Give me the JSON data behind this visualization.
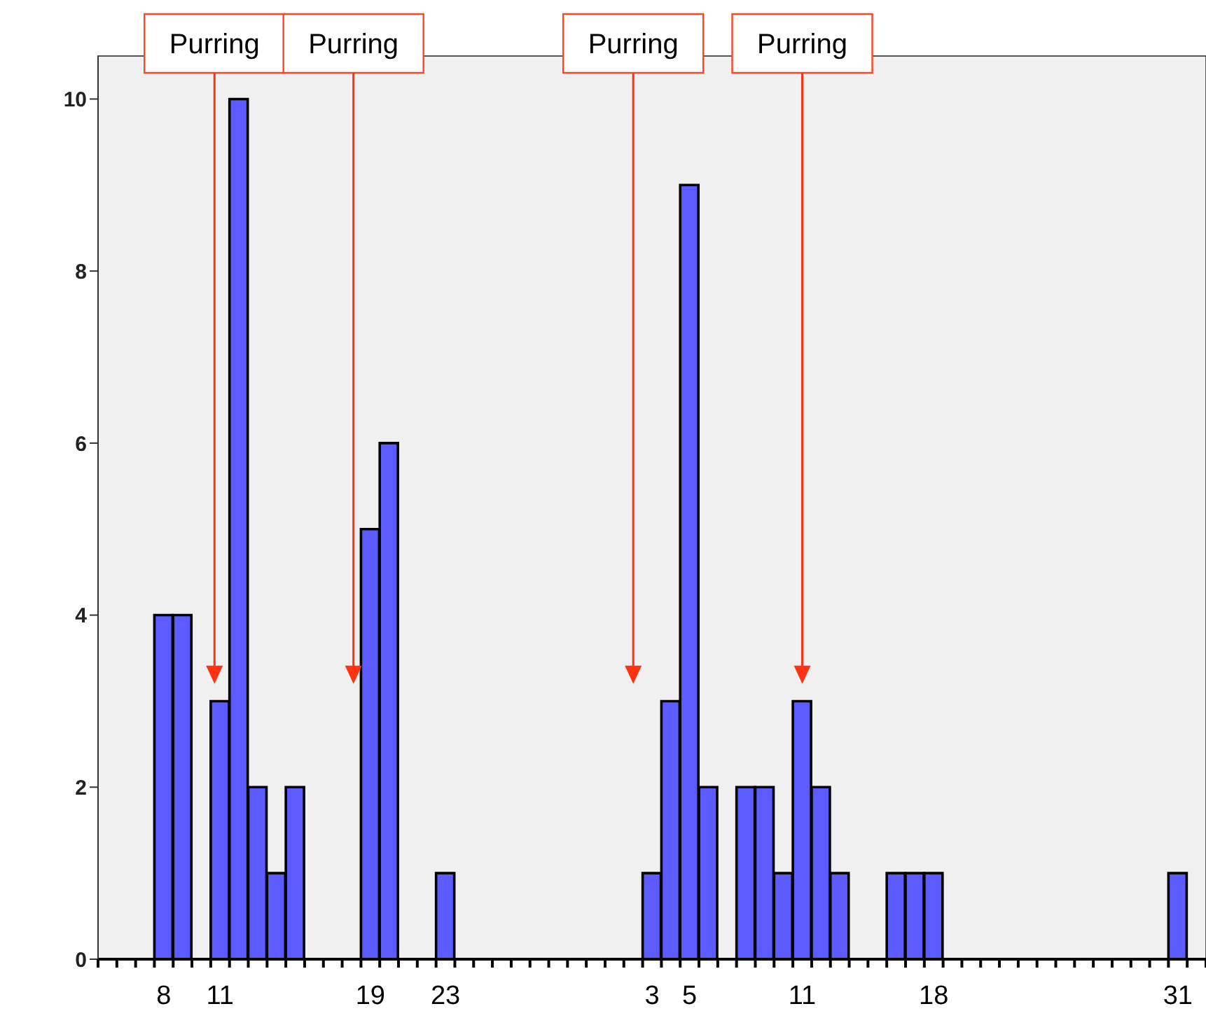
{
  "chart_data": {
    "type": "bar",
    "categories": [
      null,
      null,
      null,
      "8",
      null,
      null,
      "11",
      null,
      null,
      null,
      null,
      null,
      null,
      null,
      "19",
      null,
      null,
      null,
      "23",
      null,
      null,
      null,
      null,
      null,
      null,
      null,
      null,
      null,
      null,
      "3",
      null,
      "5",
      null,
      null,
      null,
      null,
      null,
      "11",
      null,
      null,
      null,
      null,
      null,
      null,
      "18",
      null,
      null,
      null,
      null,
      null,
      null,
      null,
      null,
      null,
      null,
      null,
      null,
      "31",
      null
    ],
    "series": [
      {
        "color": "#5b5bff",
        "values": [
          0,
          0,
          0,
          4,
          4,
          0,
          3,
          10,
          2,
          1,
          2,
          0,
          0,
          0,
          5,
          6,
          0,
          0,
          1,
          0,
          0,
          0,
          0,
          0,
          0,
          0,
          0,
          0,
          0,
          1,
          3,
          9,
          2,
          0,
          2,
          2,
          1,
          3,
          2,
          1,
          0,
          0,
          1,
          1,
          1,
          0,
          0,
          0,
          0,
          0,
          0,
          0,
          0,
          0,
          0,
          0,
          0,
          1,
          0
        ]
      }
    ],
    "ylim": [
      0,
      10.5
    ],
    "yticks": [
      0,
      2,
      4,
      6,
      8,
      10
    ],
    "annotations": [
      "Purring",
      "Purring",
      "Purring",
      "Purring"
    ]
  }
}
